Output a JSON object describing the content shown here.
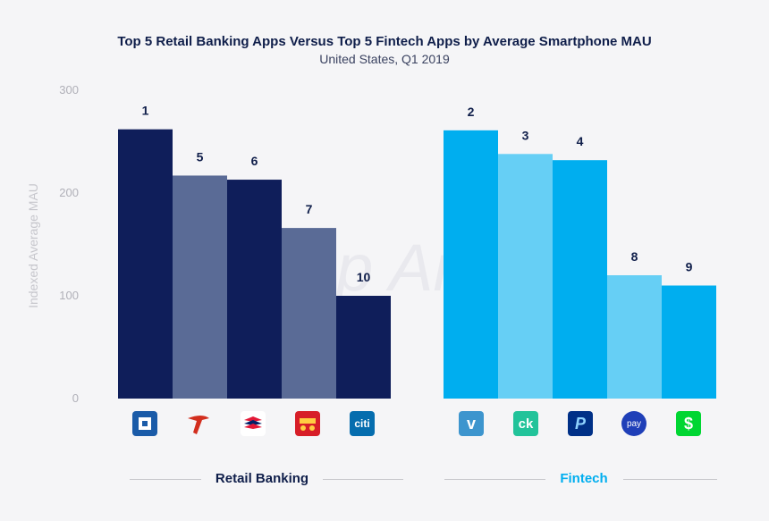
{
  "chart_data": {
    "type": "bar",
    "title": "Top 5 Retail Banking Apps Versus Top 5 Fintech Apps by Average Smartphone MAU",
    "subtitle": "United States, Q1 2019",
    "ylabel": "Indexed Average MAU",
    "ylim": [
      0,
      300
    ],
    "yticks": [
      "0",
      "100",
      "200",
      "300"
    ],
    "watermark": "App Annie",
    "groups": [
      {
        "name": "Retail Banking",
        "color": "#0f1e5a",
        "bars": [
          {
            "rank": "1",
            "value": 262,
            "color": "#0f1e5a",
            "icon": "chase-icon"
          },
          {
            "rank": "5",
            "value": 217,
            "color": "#5a6b96",
            "icon": "capital-one-icon"
          },
          {
            "rank": "6",
            "value": 213,
            "color": "#0f1e5a",
            "icon": "bank-of-america-icon"
          },
          {
            "rank": "7",
            "value": 166,
            "color": "#5a6b96",
            "icon": "wells-fargo-icon"
          },
          {
            "rank": "10",
            "value": 100,
            "color": "#0f1e5a",
            "icon": "citi-icon"
          }
        ]
      },
      {
        "name": "Fintech",
        "color": "#00aeef",
        "bars": [
          {
            "rank": "2",
            "value": 261,
            "color": "#00aeef",
            "icon": "venmo-icon"
          },
          {
            "rank": "3",
            "value": 238,
            "color": "#66cff5",
            "icon": "credit-karma-icon"
          },
          {
            "rank": "4",
            "value": 232,
            "color": "#00aeef",
            "icon": "paypal-icon"
          },
          {
            "rank": "8",
            "value": 120,
            "color": "#66cff5",
            "icon": "samsung-pay-icon"
          },
          {
            "rank": "9",
            "value": 110,
            "color": "#00aeef",
            "icon": "cash-app-icon"
          }
        ]
      }
    ]
  },
  "icons": {
    "citi_text": "citi",
    "venmo_text": "v",
    "creditkarma_text": "ck",
    "paypal_text": "P",
    "samsungpay_text": "pay",
    "cashapp_text": "$"
  }
}
